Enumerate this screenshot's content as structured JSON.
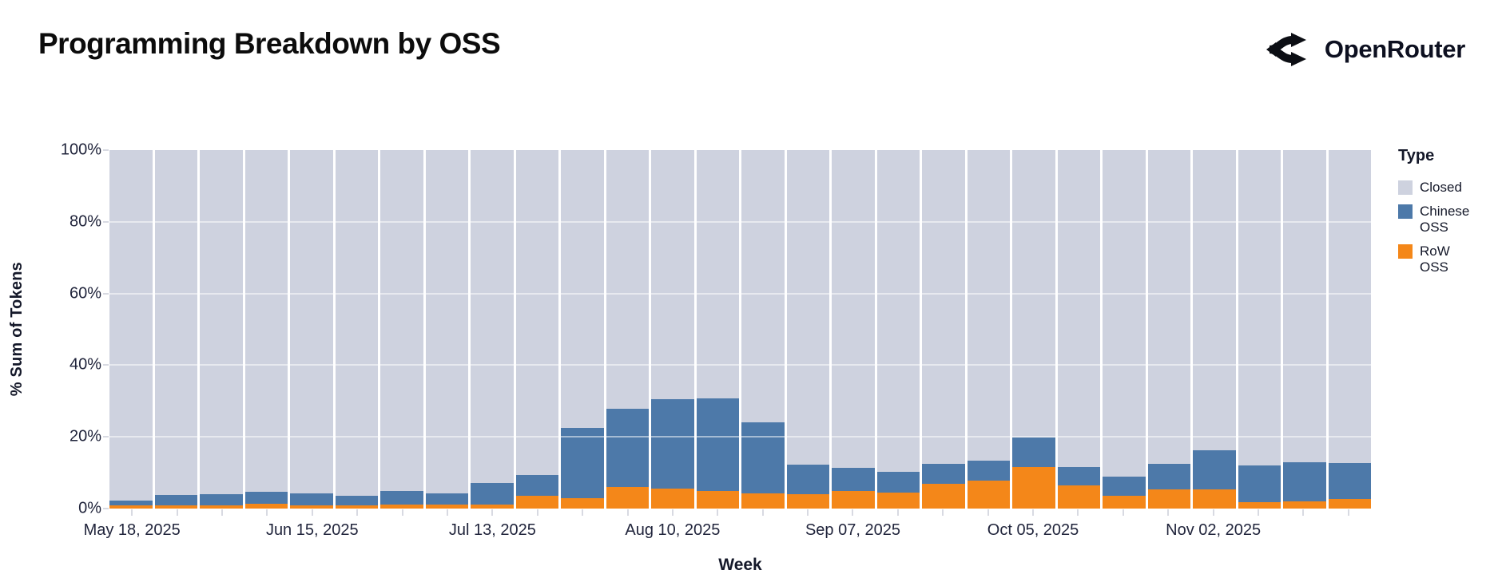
{
  "header": {
    "title": "Programming Breakdown by OSS",
    "logo_text": "OpenRouter"
  },
  "legend": {
    "title": "Type",
    "items": [
      {
        "label": "Closed",
        "color": "#ced2df"
      },
      {
        "label": "Chinese OSS",
        "color": "#4d79a9"
      },
      {
        "label": "RoW OSS",
        "color": "#f48719"
      }
    ]
  },
  "chart_data": {
    "type": "bar",
    "stacked": true,
    "title": "Programming Breakdown by OSS",
    "xlabel": "Week",
    "ylabel": "% Sum of Tokens",
    "ylim": [
      0,
      100
    ],
    "unit": "%",
    "legend_position": "right",
    "grid": "horizontal-20pct",
    "categories": [
      "May 18, 2025",
      "May 25, 2025",
      "Jun 01, 2025",
      "Jun 08, 2025",
      "Jun 15, 2025",
      "Jun 22, 2025",
      "Jun 29, 2025",
      "Jul 06, 2025",
      "Jul 13, 2025",
      "Jul 20, 2025",
      "Jul 27, 2025",
      "Aug 03, 2025",
      "Aug 10, 2025",
      "Aug 17, 2025",
      "Aug 24, 2025",
      "Aug 31, 2025",
      "Sep 07, 2025",
      "Sep 14, 2025",
      "Sep 21, 2025",
      "Sep 28, 2025",
      "Oct 05, 2025",
      "Oct 12, 2025",
      "Oct 19, 2025",
      "Oct 26, 2025",
      "Nov 02, 2025",
      "Nov 09, 2025",
      "Nov 16, 2025",
      "Nov 23, 2025"
    ],
    "series": [
      {
        "name": "RoW OSS",
        "color": "#f48719",
        "stack_order": 0,
        "values": [
          1.0,
          0.9,
          1.0,
          1.4,
          1.0,
          0.8,
          1.2,
          1.1,
          1.1,
          3.5,
          2.9,
          6.0,
          5.5,
          4.8,
          4.3,
          4.1,
          4.9,
          4.4,
          6.9,
          7.9,
          11.5,
          6.4,
          3.6,
          5.3,
          5.3,
          1.8,
          1.9,
          2.6
        ]
      },
      {
        "name": "Chinese OSS",
        "color": "#4d79a9",
        "stack_order": 1,
        "values": [
          1.2,
          3.0,
          3.0,
          3.2,
          3.3,
          2.7,
          3.8,
          3.1,
          6.1,
          5.8,
          19.5,
          21.8,
          25.0,
          26.0,
          19.8,
          8.1,
          6.5,
          5.9,
          5.6,
          5.5,
          8.3,
          5.2,
          5.3,
          7.2,
          11.0,
          10.3,
          11.0,
          10.0
        ]
      },
      {
        "name": "Closed",
        "color": "#ced2df",
        "stack_order": 2,
        "values": [
          97.8,
          96.1,
          96.0,
          95.4,
          95.7,
          96.5,
          95.0,
          95.8,
          92.8,
          90.7,
          77.6,
          72.2,
          69.5,
          69.2,
          75.9,
          87.8,
          88.6,
          89.7,
          87.5,
          86.6,
          80.2,
          88.4,
          91.1,
          87.5,
          83.7,
          87.9,
          87.1,
          87.4
        ]
      }
    ],
    "y_ticks": [
      {
        "value": 0,
        "label": "0%"
      },
      {
        "value": 20,
        "label": "20%"
      },
      {
        "value": 40,
        "label": "40%"
      },
      {
        "value": 60,
        "label": "60%"
      },
      {
        "value": 80,
        "label": "80%"
      },
      {
        "value": 100,
        "label": "100%"
      }
    ],
    "gridline_values": [
      20,
      40,
      60,
      80
    ],
    "x_tick_labels": [
      {
        "index": 0,
        "label": "May 18, 2025"
      },
      {
        "index": 4,
        "label": "Jun 15, 2025"
      },
      {
        "index": 8,
        "label": "Jul 13, 2025"
      },
      {
        "index": 12,
        "label": "Aug 10, 2025"
      },
      {
        "index": 16,
        "label": "Sep 07, 2025"
      },
      {
        "index": 20,
        "label": "Oct 05, 2025"
      },
      {
        "index": 24,
        "label": "Nov 02, 2025"
      }
    ]
  }
}
